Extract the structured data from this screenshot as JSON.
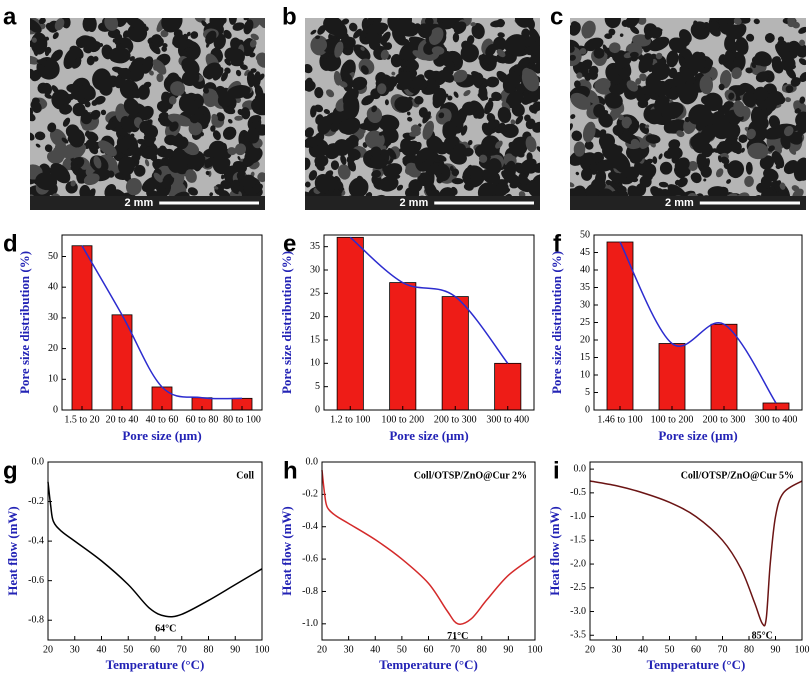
{
  "images": [
    {
      "label": "a",
      "scale_bar": "2 mm"
    },
    {
      "label": "b",
      "scale_bar": "2 mm"
    },
    {
      "label": "c",
      "scale_bar": "2 mm"
    }
  ],
  "chart_data": [
    {
      "type": "bar",
      "label": "d",
      "xlabel": "Pore size (μm)",
      "ylabel": "Pore size distribution (%)",
      "categories": [
        "1.5 to 20",
        "20 to 40",
        "40 to 60",
        "60 to 80",
        "80 to 100"
      ],
      "values": [
        53.5,
        31,
        7.5,
        4,
        3.8
      ],
      "color": "#ee1c17",
      "fit_color": "#2c2ccf",
      "ylim": [
        0,
        57
      ],
      "yticks": [
        0,
        10,
        20,
        30,
        40,
        50
      ]
    },
    {
      "type": "bar",
      "label": "e",
      "xlabel": "Pore size (μm)",
      "ylabel": "Pore size distribution (%)",
      "categories": [
        "1.2 to 100",
        "100 to 200",
        "200 to 300",
        "300 to 400"
      ],
      "values": [
        37,
        27.3,
        24.3,
        10
      ],
      "color": "#ee1c17",
      "fit_color": "#2c2ccf",
      "ylim": [
        0,
        37.5
      ],
      "yticks": [
        0,
        5,
        10,
        15,
        20,
        25,
        30,
        35
      ]
    },
    {
      "type": "bar",
      "label": "f",
      "xlabel": "Pore size (μm)",
      "ylabel": "Pore size distribution (%)",
      "categories": [
        "1.46 to 100",
        "100 to 200",
        "200 to 300",
        "300 to 400"
      ],
      "values": [
        48,
        19,
        24.5,
        2
      ],
      "color": "#ee1c17",
      "fit_color": "#2c2ccf",
      "ylim": [
        0,
        50
      ],
      "yticks": [
        0,
        5,
        10,
        15,
        20,
        25,
        30,
        35,
        40,
        45,
        50
      ]
    },
    {
      "type": "line",
      "label": "g",
      "xlabel": "Temperature (°C)",
      "ylabel": "Heat flow (mW)",
      "annotation": "Coll",
      "peak_label": "64°C",
      "peak_x": 64,
      "peak_y": -0.78,
      "x": [
        20,
        21,
        22,
        25,
        30,
        40,
        50,
        58,
        64,
        70,
        80,
        90,
        100
      ],
      "values": [
        -0.1,
        -0.22,
        -0.3,
        -0.35,
        -0.4,
        -0.5,
        -0.62,
        -0.74,
        -0.78,
        -0.77,
        -0.7,
        -0.62,
        -0.54
      ],
      "color": "#000000",
      "xlim": [
        20,
        100
      ],
      "ylim": [
        -0.9,
        0
      ],
      "xticks": [
        20,
        30,
        40,
        50,
        60,
        70,
        80,
        90,
        100
      ],
      "yticks": [
        {
          "value": 0,
          "label": "0.0"
        },
        -0.2,
        -0.4,
        -0.6,
        -0.8
      ]
    },
    {
      "type": "line",
      "label": "h",
      "xlabel": "Temperature (°C)",
      "ylabel": "Heat flow (mW)",
      "annotation": "Coll/OTSP/ZnO@Cur 2%",
      "peak_label": "71°C",
      "peak_x": 71,
      "peak_y": -1.0,
      "x": [
        20,
        21,
        22,
        25,
        30,
        40,
        50,
        60,
        67,
        71,
        76,
        82,
        90,
        100
      ],
      "values": [
        -0.05,
        -0.2,
        -0.28,
        -0.33,
        -0.38,
        -0.48,
        -0.6,
        -0.75,
        -0.92,
        -1.0,
        -0.97,
        -0.85,
        -0.7,
        -0.58
      ],
      "color": "#d42a2a",
      "xlim": [
        20,
        100
      ],
      "ylim": [
        -1.1,
        0
      ],
      "xticks": [
        20,
        30,
        40,
        50,
        60,
        70,
        80,
        90,
        100
      ],
      "yticks": [
        {
          "value": 0,
          "label": "0.0"
        },
        -0.2,
        -0.4,
        -0.6,
        -0.8,
        {
          "value": -1,
          "label": "-1.0"
        }
      ]
    },
    {
      "type": "line",
      "label": "i",
      "xlabel": "Temperature (°C)",
      "ylabel": "Heat flow (mW)",
      "annotation": "Coll/OTSP/ZnO@Cur 5%",
      "peak_label": "85°C",
      "peak_x": 85,
      "peak_y": -3.25,
      "x": [
        20,
        30,
        40,
        50,
        60,
        70,
        77,
        82,
        85,
        86.5,
        88,
        90,
        93,
        100
      ],
      "values": [
        -0.25,
        -0.35,
        -0.5,
        -0.7,
        -1.0,
        -1.5,
        -2.1,
        -2.8,
        -3.25,
        -3.15,
        -2.0,
        -1.0,
        -0.5,
        -0.25
      ],
      "color": "#6b1414",
      "xlim": [
        20,
        100
      ],
      "ylim": [
        -3.6,
        0.15
      ],
      "xticks": [
        20,
        30,
        40,
        50,
        60,
        70,
        80,
        90,
        100
      ],
      "yticks": [
        {
          "value": 0,
          "label": "0.0"
        },
        -0.5,
        {
          "value": -1,
          "label": "-1.0"
        },
        -1.5,
        {
          "value": -2,
          "label": "-2.0"
        },
        -2.5,
        {
          "value": -3,
          "label": "-3.0"
        },
        -3.5
      ]
    }
  ]
}
